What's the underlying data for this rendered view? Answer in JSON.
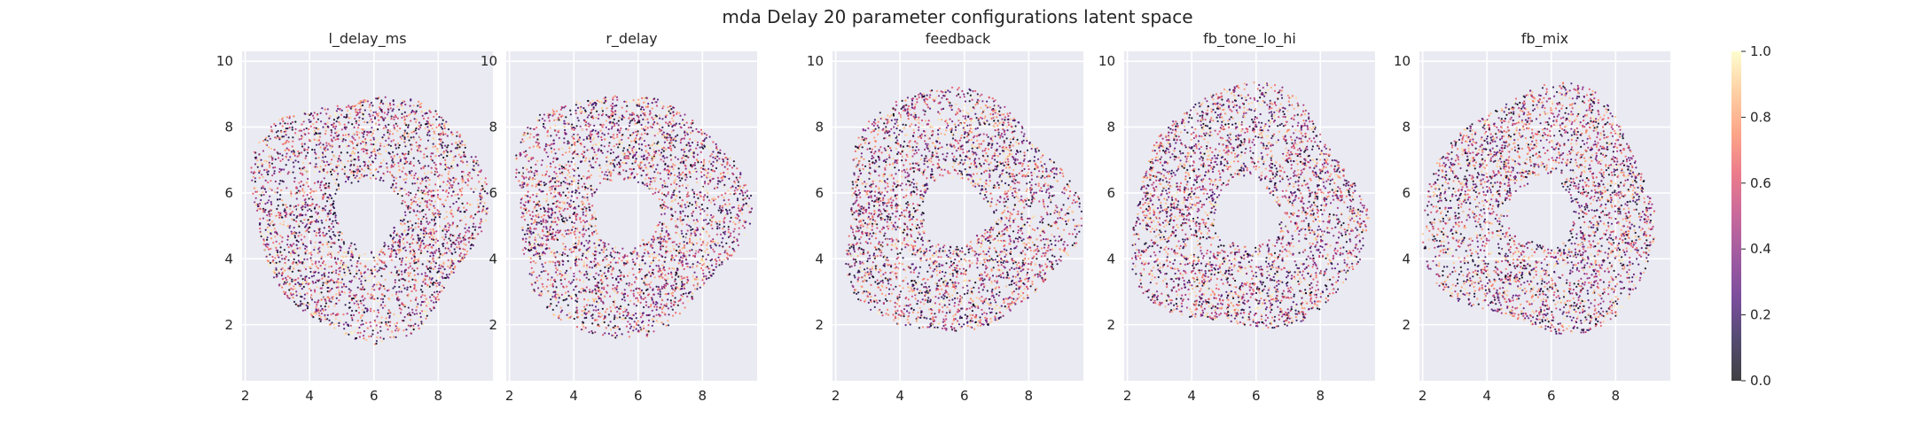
{
  "figure": {
    "title": "mda Delay 20 parameter configurations latent space"
  },
  "chart_data": [
    {
      "type": "scatter",
      "title": "l_delay_ms",
      "xlabel": "",
      "ylabel": "",
      "xlim": [
        1.9,
        9.7
      ],
      "ylim": [
        0.3,
        10.3
      ],
      "xticks": [
        2,
        4,
        6,
        8
      ],
      "yticks": [
        2,
        4,
        6,
        8,
        10
      ],
      "grid": true,
      "cloud": {
        "cx": 5.8,
        "cy": 5.4,
        "rx": 3.6,
        "ry": 3.7,
        "points": 3200
      },
      "dark_center": {
        "x": 5.6,
        "y": 5.4,
        "radius": 0.9,
        "strength": 0.9
      }
    },
    {
      "type": "scatter",
      "title": "r_delay",
      "xlabel": "",
      "ylabel": "",
      "xlim": [
        1.9,
        9.7
      ],
      "ylim": [
        0.3,
        10.3
      ],
      "xticks": [
        2,
        4,
        6,
        8
      ],
      "yticks": [
        2,
        4,
        6,
        8,
        10
      ],
      "grid": true,
      "cloud": {
        "cx": 5.6,
        "cy": 5.4,
        "rx": 3.6,
        "ry": 3.7,
        "points": 3200
      },
      "dark_center": {
        "x": 5.6,
        "y": 5.4,
        "radius": 0.9,
        "strength": 0.0
      }
    },
    {
      "type": "scatter",
      "title": "feedback",
      "xlabel": "",
      "ylabel": "",
      "xlim": [
        1.9,
        9.7
      ],
      "ylim": [
        0.3,
        10.3
      ],
      "xticks": [
        2,
        4,
        6,
        8
      ],
      "yticks": [
        2,
        4,
        6,
        8,
        10
      ],
      "grid": true,
      "cloud": {
        "cx": 5.7,
        "cy": 5.4,
        "rx": 3.6,
        "ry": 3.7,
        "points": 3200
      },
      "dark_center": {
        "x": 5.6,
        "y": 5.4,
        "radius": 0.9,
        "strength": 0.0
      }
    },
    {
      "type": "scatter",
      "title": "fb_tone_lo_hi",
      "xlabel": "",
      "ylabel": "",
      "xlim": [
        1.9,
        9.7
      ],
      "ylim": [
        0.3,
        10.3
      ],
      "xticks": [
        2,
        4,
        6,
        8
      ],
      "yticks": [
        2,
        4,
        6,
        8,
        10
      ],
      "grid": true,
      "cloud": {
        "cx": 5.7,
        "cy": 5.4,
        "rx": 3.6,
        "ry": 3.7,
        "points": 3200
      },
      "dark_center": {
        "x": 5.6,
        "y": 5.5,
        "radius": 0.9,
        "strength": 0.75
      }
    },
    {
      "type": "scatter",
      "title": "fb_mix",
      "xlabel": "",
      "ylabel": "",
      "xlim": [
        1.9,
        9.7
      ],
      "ylim": [
        0.3,
        10.3
      ],
      "xticks": [
        2,
        4,
        6,
        8
      ],
      "yticks": [
        2,
        4,
        6,
        8,
        10
      ],
      "grid": true,
      "cloud": {
        "cx": 5.7,
        "cy": 5.4,
        "rx": 3.6,
        "ry": 3.7,
        "points": 3200
      },
      "dark_center": {
        "x": 6.0,
        "y": 5.4,
        "radius": 0.8,
        "strength": 0.85
      }
    }
  ],
  "colorbar": {
    "colormap": "magma",
    "range": [
      0.0,
      1.0
    ],
    "ticks": [
      "0.0",
      "0.2",
      "0.4",
      "0.6",
      "0.8",
      "1.0"
    ]
  },
  "colors": {
    "axes_background": "#eaeaf2",
    "grid": "#ffffff"
  }
}
